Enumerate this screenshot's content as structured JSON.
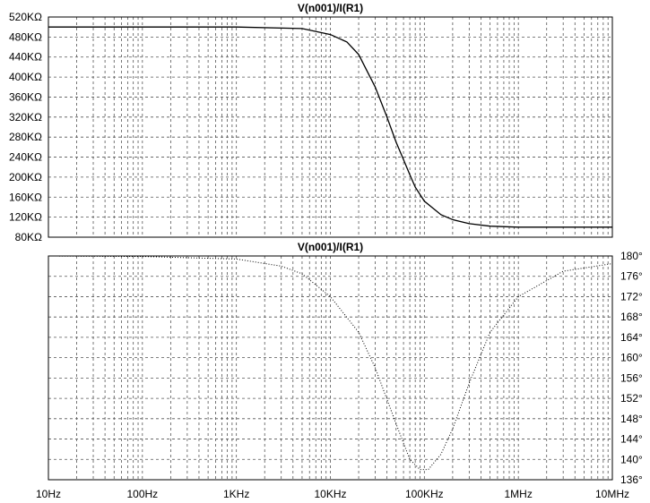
{
  "chart_data": [
    {
      "type": "line",
      "title": "V(n001)/I(R1)",
      "x_scale": "log",
      "xlim": [
        10,
        10000000
      ],
      "y_unit": "KΩ",
      "ylim": [
        80,
        520
      ],
      "yticks": [
        80,
        120,
        160,
        200,
        240,
        280,
        320,
        360,
        400,
        440,
        480,
        520
      ],
      "ytick_labels": [
        "80KΩ",
        "120KΩ",
        "160KΩ",
        "200KΩ",
        "240KΩ",
        "280KΩ",
        "320KΩ",
        "360KΩ",
        "400KΩ",
        "440KΩ",
        "480KΩ",
        "520KΩ"
      ],
      "y_axis_side": "left",
      "grid": true,
      "series": [
        {
          "line_style": "solid",
          "x": [
            10,
            100,
            1000,
            5000,
            10000,
            15000,
            20000,
            30000,
            40000,
            50000,
            60000,
            70000,
            80000,
            100000,
            150000,
            200000,
            300000,
            500000,
            1000000,
            10000000
          ],
          "values": [
            500,
            500,
            500,
            497,
            485,
            470,
            445,
            380,
            320,
            270,
            235,
            205,
            180,
            152,
            125,
            115,
            107,
            102,
            100,
            100
          ]
        }
      ]
    },
    {
      "type": "line",
      "title": "V(n001)/I(R1)",
      "x_scale": "log",
      "xlim": [
        10,
        10000000
      ],
      "y_unit": "°",
      "ylim": [
        136,
        180
      ],
      "yticks": [
        136,
        140,
        144,
        148,
        152,
        156,
        160,
        164,
        168,
        172,
        176,
        180
      ],
      "ytick_labels": [
        "136°",
        "140°",
        "144°",
        "148°",
        "152°",
        "156°",
        "160°",
        "164°",
        "168°",
        "172°",
        "176°",
        "180°"
      ],
      "y_axis_side": "right",
      "grid": true,
      "series": [
        {
          "line_style": "dotted",
          "x": [
            10,
            100,
            1000,
            3000,
            5000,
            10000,
            20000,
            30000,
            50000,
            70000,
            90000,
            110000,
            150000,
            200000,
            300000,
            500000,
            1000000,
            3000000,
            10000000
          ],
          "values": [
            180,
            179.9,
            179.4,
            178,
            176.5,
            172,
            165,
            158,
            147,
            140,
            138,
            138,
            141,
            146,
            155,
            165,
            172,
            177,
            178.5
          ]
        }
      ]
    }
  ],
  "x_axis": {
    "tick_values": [
      10,
      100,
      1000,
      10000,
      100000,
      1000000,
      10000000
    ],
    "tick_labels": [
      "10Hz",
      "100Hz",
      "1KHz",
      "10KHz",
      "100KHz",
      "1MHz",
      "10MHz"
    ]
  }
}
